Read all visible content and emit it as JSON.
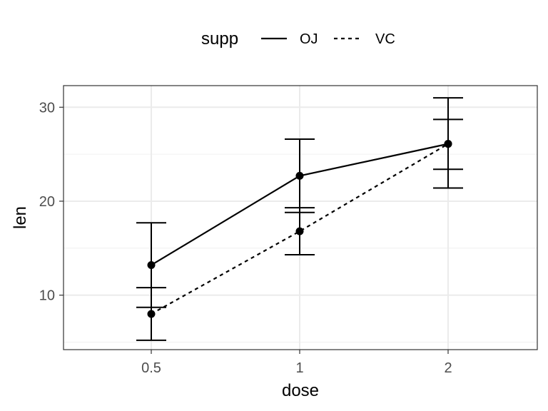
{
  "chart_data": {
    "type": "line",
    "xlabel": "dose",
    "ylabel": "len",
    "categories": [
      "0.5",
      "1",
      "2"
    ],
    "ylim": [
      4.2,
      32.3
    ],
    "yticks": [
      10,
      20,
      30
    ],
    "grid": true,
    "legend": {
      "title": "supp",
      "position": "top"
    },
    "series": [
      {
        "name": "OJ",
        "linetype": "solid",
        "values": [
          13.2,
          22.7,
          26.1
        ],
        "err_low": [
          8.7,
          18.8,
          23.4
        ],
        "err_high": [
          17.7,
          26.6,
          28.7
        ]
      },
      {
        "name": "VC",
        "linetype": "dashed",
        "values": [
          8.0,
          16.8,
          26.1
        ],
        "err_low": [
          5.2,
          14.3,
          21.4
        ],
        "err_high": [
          10.8,
          19.3,
          31.0
        ]
      }
    ]
  }
}
